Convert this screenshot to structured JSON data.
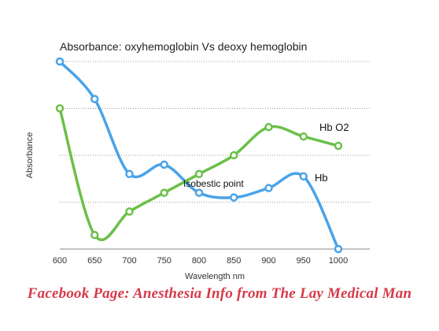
{
  "chart_data": {
    "type": "line",
    "title": "Absorbance: oxyhemoglobin Vs deoxy hemoglobin",
    "xlabel": "Wavelength nm",
    "ylabel": "Absorbance",
    "x": [
      600,
      650,
      700,
      750,
      800,
      850,
      900,
      950,
      1000
    ],
    "xlim": [
      600,
      1000
    ],
    "ylim": [
      0,
      4
    ],
    "grid": "horizontal dotted",
    "series": [
      {
        "name": "Hb",
        "color": "#4aa3e8",
        "values": [
          4.0,
          3.2,
          1.6,
          1.8,
          1.2,
          1.1,
          1.3,
          1.55,
          0.0
        ]
      },
      {
        "name": "Hb O2",
        "color": "#6cc04a",
        "values": [
          3.0,
          0.3,
          0.8,
          1.2,
          1.6,
          2.0,
          2.6,
          2.4,
          2.2
        ]
      }
    ],
    "annotations": [
      "Isobestic point"
    ]
  },
  "footer": "Facebook Page: Anesthesia Info from The Lay Medical Man"
}
